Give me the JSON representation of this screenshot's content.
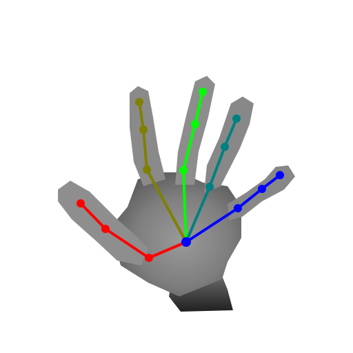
{
  "image": {
    "subject": "hand",
    "background_color": "#ffffff",
    "hand_fill": "#8a8a8a",
    "hand_shadow": "#3c3c3c",
    "hand_outline": "#9a9a9a"
  },
  "skeleton": {
    "wrist_color": "#0000ff",
    "joint_radius": 6,
    "fingers": [
      {
        "name": "thumb",
        "color": "#ff0000"
      },
      {
        "name": "index",
        "color": "#808000"
      },
      {
        "name": "middle",
        "color": "#00ff00"
      },
      {
        "name": "ring",
        "color": "#008080"
      },
      {
        "name": "pinky",
        "color": "#0000ff"
      }
    ]
  }
}
